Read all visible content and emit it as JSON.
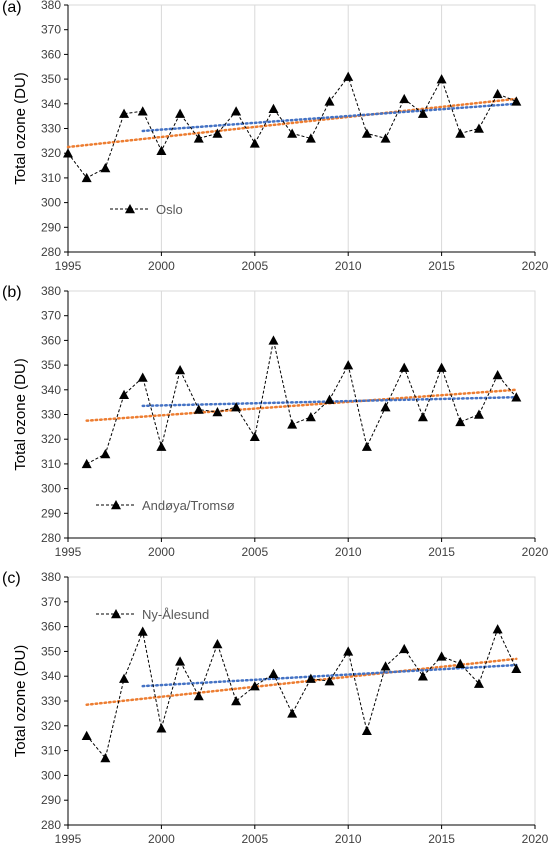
{
  "chart_data": [
    {
      "type": "line",
      "panel_label": "(a)",
      "ylabel": "Total ozone (DU)",
      "xlim": [
        1995,
        2020
      ],
      "ylim": [
        280,
        380
      ],
      "xticks": [
        "1995",
        "2000",
        "2005",
        "2010",
        "2015",
        "2020"
      ],
      "yticks": [
        "280",
        "290",
        "300",
        "310",
        "320",
        "330",
        "340",
        "350",
        "360",
        "370",
        "380"
      ],
      "grid": "vertical",
      "legend_position": "left",
      "series": [
        {
          "name": "Oslo",
          "x": [
            1995,
            1996,
            1997,
            1998,
            1999,
            2000,
            2001,
            2002,
            2003,
            2004,
            2005,
            2006,
            2007,
            2008,
            2009,
            2010,
            2011,
            2012,
            2013,
            2014,
            2015,
            2016,
            2017,
            2018,
            2019
          ],
          "values": [
            320,
            310,
            314,
            336,
            337,
            321,
            336,
            326,
            328,
            337,
            324,
            338,
            328,
            326,
            341,
            351,
            328,
            326,
            342,
            336,
            350,
            328,
            330,
            344,
            341
          ]
        }
      ],
      "trend_lines": [
        {
          "color": "#ED7D31",
          "x": [
            1995,
            2019
          ],
          "y": [
            322.5,
            342
          ]
        },
        {
          "color": "#4472C4",
          "x": [
            1999,
            2019
          ],
          "y": [
            329,
            340
          ]
        }
      ]
    },
    {
      "type": "line",
      "panel_label": "(b)",
      "ylabel": "Total ozone (DU)",
      "xlim": [
        1995,
        2020
      ],
      "ylim": [
        280,
        380
      ],
      "xticks": [
        "1995",
        "2000",
        "2005",
        "2010",
        "2015",
        "2020"
      ],
      "yticks": [
        "280",
        "290",
        "300",
        "310",
        "320",
        "330",
        "340",
        "350",
        "360",
        "370",
        "380"
      ],
      "grid": "vertical",
      "legend_position": "bottom-left",
      "series": [
        {
          "name": "Andøya/Tromsø",
          "x": [
            1996,
            1997,
            1998,
            1999,
            2000,
            2001,
            2002,
            2003,
            2004,
            2005,
            2006,
            2007,
            2008,
            2009,
            2010,
            2011,
            2012,
            2013,
            2014,
            2015,
            2016,
            2017,
            2018,
            2019
          ],
          "values": [
            310,
            314,
            338,
            345,
            317,
            348,
            332,
            331,
            333,
            321,
            360,
            326,
            329,
            336,
            350,
            317,
            333,
            349,
            329,
            349,
            327,
            330,
            346,
            337
          ]
        }
      ],
      "trend_lines": [
        {
          "color": "#ED7D31",
          "x": [
            1996,
            2019
          ],
          "y": [
            327.5,
            340
          ]
        },
        {
          "color": "#4472C4",
          "x": [
            1999,
            2019
          ],
          "y": [
            333.5,
            337
          ]
        }
      ]
    },
    {
      "type": "line",
      "panel_label": "(c)",
      "ylabel": "Total ozone (DU)",
      "xlim": [
        1995,
        2020
      ],
      "ylim": [
        280,
        380
      ],
      "xticks": [
        "1995",
        "2000",
        "2005",
        "2010",
        "2015",
        "2020"
      ],
      "yticks": [
        "280",
        "290",
        "300",
        "310",
        "320",
        "330",
        "340",
        "350",
        "360",
        "370",
        "380"
      ],
      "grid": "vertical",
      "legend_position": "top-left",
      "series": [
        {
          "name": "Ny-Ålesund",
          "x": [
            1996,
            1997,
            1998,
            1999,
            2000,
            2001,
            2002,
            2003,
            2004,
            2005,
            2006,
            2007,
            2008,
            2009,
            2010,
            2011,
            2012,
            2013,
            2014,
            2015,
            2016,
            2017,
            2018,
            2019
          ],
          "values": [
            316,
            307,
            339,
            358,
            319,
            346,
            332,
            353,
            330,
            336,
            341,
            325,
            339,
            338,
            350,
            318,
            344,
            351,
            340,
            348,
            345,
            337,
            359,
            343
          ]
        }
      ],
      "trend_lines": [
        {
          "color": "#ED7D31",
          "x": [
            1996,
            2019
          ],
          "y": [
            328.5,
            347
          ]
        },
        {
          "color": "#4472C4",
          "x": [
            1999,
            2019
          ],
          "y": [
            336,
            344.5
          ]
        }
      ]
    }
  ]
}
